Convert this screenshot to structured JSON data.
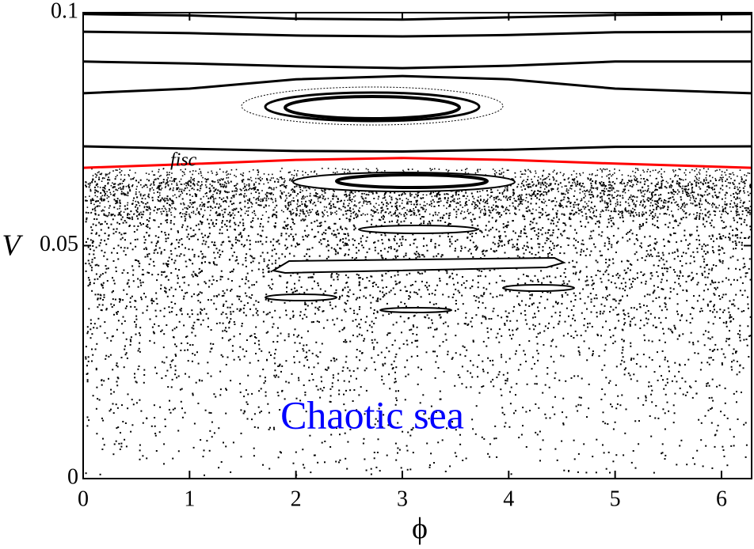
{
  "chart_data": {
    "type": "line",
    "xlabel": "ϕ",
    "ylabel": "V",
    "annotations": [
      "fisc",
      "Chaotic sea"
    ],
    "xlim": [
      0,
      6.2832
    ],
    "ylim": [
      0,
      0.1
    ],
    "xticks": [
      0,
      1,
      2,
      3,
      4,
      5,
      6
    ],
    "yticks": [
      0,
      0.05,
      0.1
    ],
    "series": [
      {
        "color": "#000000",
        "x": [
          0,
          1,
          2,
          3,
          4,
          5,
          6.2832
        ],
        "values": [
          0.0997,
          0.0994,
          0.0987,
          0.0985,
          0.099,
          0.0995,
          0.0997
        ]
      },
      {
        "color": "#000000",
        "x": [
          0,
          1,
          2,
          3,
          4,
          5,
          6.2832
        ],
        "values": [
          0.0959,
          0.0956,
          0.0951,
          0.0949,
          0.0952,
          0.0958,
          0.0959
        ]
      },
      {
        "color": "#000000",
        "x": [
          0,
          1,
          2,
          3,
          4,
          5,
          6.2832
        ],
        "values": [
          0.0895,
          0.0891,
          0.0885,
          0.0881,
          0.0886,
          0.0895,
          0.0895
        ]
      },
      {
        "color": "#000000",
        "x": [
          0,
          1,
          2,
          3,
          4,
          5,
          6.2832
        ],
        "values": [
          0.0827,
          0.0837,
          0.0857,
          0.0864,
          0.0857,
          0.0837,
          0.0827
        ]
      },
      {
        "color": "#000000",
        "x": [
          0,
          1,
          2,
          3,
          4,
          5,
          6.2832
        ],
        "values": [
          0.0713,
          0.0708,
          0.0703,
          0.0702,
          0.0706,
          0.0712,
          0.0713
        ]
      },
      {
        "color": "#ff0000",
        "x": [
          0,
          1,
          2,
          3,
          4,
          5,
          6.2832
        ],
        "values": [
          0.0667,
          0.0675,
          0.0684,
          0.0688,
          0.0684,
          0.0676,
          0.0667
        ]
      }
    ]
  }
}
